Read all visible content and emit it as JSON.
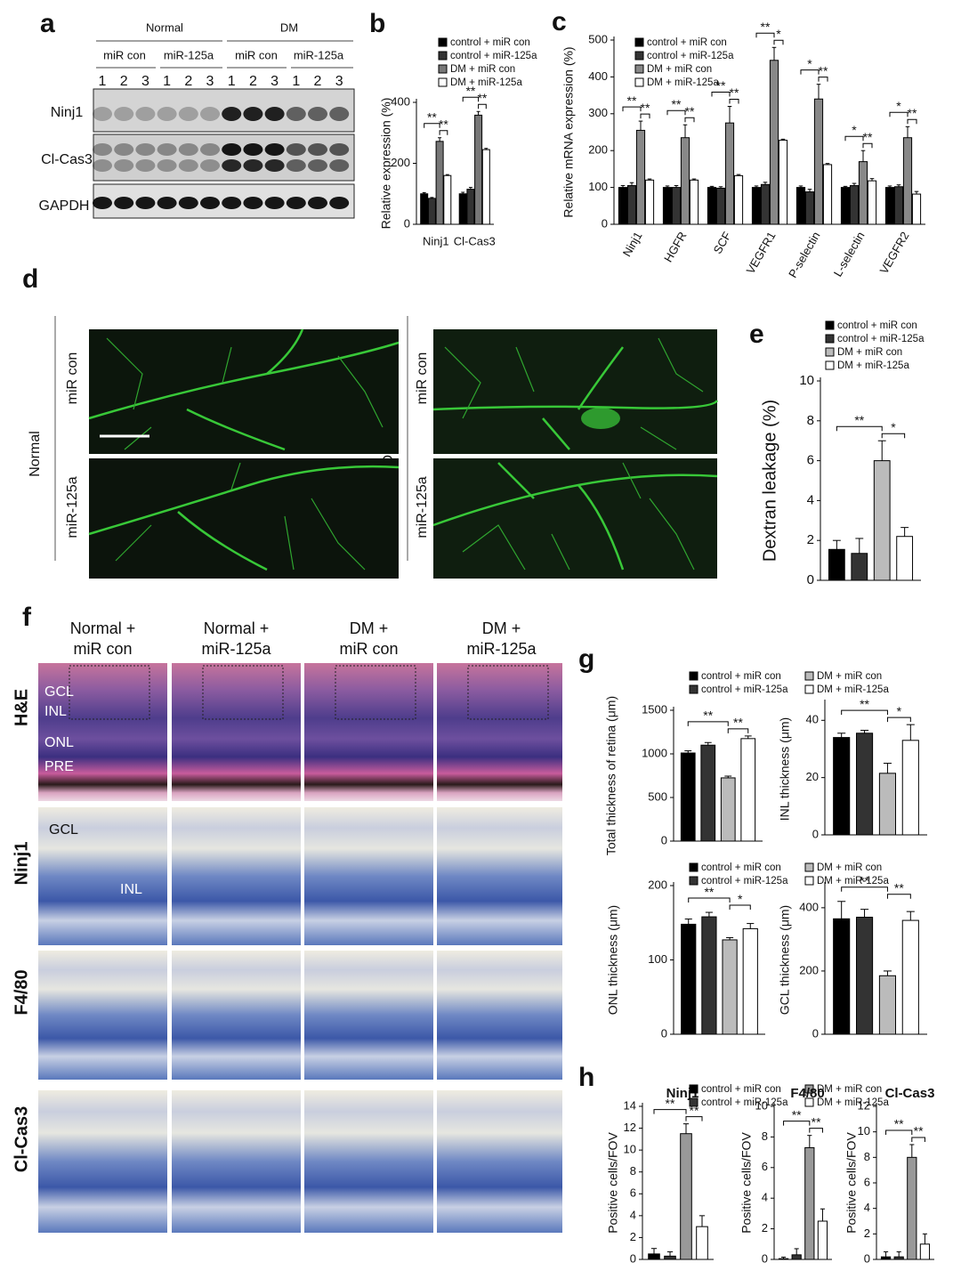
{
  "figure": {
    "panel_labels": [
      "a",
      "b",
      "c",
      "d",
      "e",
      "f",
      "g",
      "h"
    ],
    "blot": {
      "groups": [
        "Normal",
        "DM"
      ],
      "treatments": [
        "miR con",
        "miR-125a"
      ],
      "lanes": [
        "1",
        "2",
        "3"
      ],
      "rows": [
        "Ninj1",
        "Cl-Cas3",
        "GAPDH"
      ]
    },
    "angiography": {
      "groups": [
        "Normal",
        "DM"
      ],
      "treatments": [
        "miR con",
        "miR-125a"
      ]
    },
    "histology": {
      "columns": [
        [
          "Normal +",
          "miR con"
        ],
        [
          "Normal +",
          "miR-125a"
        ],
        [
          "DM +",
          "miR con"
        ],
        [
          "DM +",
          "miR-125a"
        ]
      ],
      "rows": [
        "H&E",
        "Ninj1",
        "F4/80",
        "Cl-Cas3"
      ],
      "layers": [
        "GCL",
        "INL",
        "ONL",
        "PRE"
      ]
    }
  },
  "chart_data": [
    {
      "type": "bar",
      "y_label": "Relative expression (%)",
      "categories": [
        "Ninj1",
        "Cl-Cas3"
      ],
      "ylim": [
        0,
        400
      ],
      "yticks": [
        0,
        200,
        400
      ],
      "legend": true,
      "series": [
        {
          "name": "control + miR con",
          "color": "#000000",
          "values": [
            100,
            100
          ],
          "errors": [
            4,
            5
          ]
        },
        {
          "name": "control + miR-125a",
          "color": "#333333",
          "values": [
            85,
            115
          ],
          "errors": [
            3,
            6
          ]
        },
        {
          "name": "DM + miR con",
          "color": "#777777",
          "values": [
            272,
            358
          ],
          "errors": [
            12,
            12
          ]
        },
        {
          "name": "DM + miR-125a",
          "color": "#ffffff",
          "values": [
            160,
            245
          ],
          "errors": [
            3,
            4
          ]
        }
      ],
      "annotations": [
        "**",
        "**",
        "**",
        "**"
      ]
    },
    {
      "type": "bar",
      "y_label": "Relative mRNA expression (%)",
      "categories": [
        "Ninj1",
        "HGFR",
        "SCF",
        "VEGFR1",
        "P-selectin",
        "L-selectin",
        "VEGFR2"
      ],
      "ylim": [
        0,
        500
      ],
      "yticks": [
        0,
        100,
        200,
        300,
        400,
        500
      ],
      "legend": true,
      "series": [
        {
          "name": "control + miR con",
          "color": "#000000",
          "values": [
            100,
            100,
            100,
            100,
            100,
            100,
            100
          ],
          "errors": [
            5,
            4,
            3,
            4,
            4,
            3,
            4
          ]
        },
        {
          "name": "control + miR-125a",
          "color": "#333333",
          "values": [
            105,
            100,
            98,
            108,
            88,
            105,
            102
          ],
          "errors": [
            8,
            5,
            4,
            6,
            7,
            6,
            5
          ]
        },
        {
          "name": "DM + miR con",
          "color": "#888888",
          "values": [
            255,
            235,
            275,
            445,
            340,
            170,
            235
          ],
          "errors": [
            25,
            35,
            45,
            35,
            40,
            30,
            30
          ]
        },
        {
          "name": "DM + miR-125a",
          "color": "#ffffff",
          "values": [
            120,
            120,
            132,
            228,
            162,
            118,
            82
          ],
          "errors": [
            3,
            3,
            3,
            3,
            3,
            6,
            7
          ]
        }
      ],
      "annotations": [
        "**",
        "**",
        "**",
        "**",
        "**",
        "**",
        "**",
        "*",
        "*",
        "**",
        "*",
        "**",
        "*",
        "**"
      ]
    },
    {
      "type": "bar",
      "y_label": "Dextran leakage (%)",
      "categories": [
        null
      ],
      "ylim": [
        0,
        10
      ],
      "yticks": [
        0,
        2,
        4,
        6,
        8,
        10
      ],
      "legend": true,
      "series": [
        {
          "name": "control + miR con",
          "color": "#000000",
          "values": [
            1.55
          ],
          "errors": [
            0.45
          ]
        },
        {
          "name": "control + miR-125a",
          "color": "#333333",
          "values": [
            1.35
          ],
          "errors": [
            0.75
          ]
        },
        {
          "name": "DM + miR con",
          "color": "#bbbbbb",
          "values": [
            6.0
          ],
          "errors": [
            1.0
          ]
        },
        {
          "name": "DM + miR-125a",
          "color": "#ffffff",
          "values": [
            2.2
          ],
          "errors": [
            0.45
          ]
        }
      ],
      "annotations": [
        "**",
        "*"
      ]
    },
    {
      "type": "bar",
      "y_label": "Total thickness of retina (μm)",
      "categories": [
        null
      ],
      "ylim": [
        0,
        1500
      ],
      "yticks": [
        0,
        500,
        1000,
        1500
      ],
      "legend": true,
      "series": [
        {
          "name": "control + miR con",
          "color": "#000000",
          "values": [
            1010
          ],
          "errors": [
            25
          ]
        },
        {
          "name": "control + miR-125a",
          "color": "#333333",
          "values": [
            1100
          ],
          "errors": [
            30
          ]
        },
        {
          "name": "DM + miR con",
          "color": "#bbbbbb",
          "values": [
            725
          ],
          "errors": [
            20
          ]
        },
        {
          "name": "DM + miR-125a",
          "color": "#ffffff",
          "values": [
            1175
          ],
          "errors": [
            30
          ]
        }
      ],
      "annotations": [
        "**",
        "**"
      ]
    },
    {
      "type": "bar",
      "y_label": "INL thickness (μm)",
      "categories": [
        null
      ],
      "ylim": [
        0,
        46
      ],
      "yticks": [
        0,
        20,
        40
      ],
      "series": [
        {
          "name": "control + miR con",
          "color": "#000000",
          "values": [
            34
          ],
          "errors": [
            1.5
          ]
        },
        {
          "name": "control + miR-125a",
          "color": "#333333",
          "values": [
            35.5
          ],
          "errors": [
            1.0
          ]
        },
        {
          "name": "DM + miR con",
          "color": "#bbbbbb",
          "values": [
            21.5
          ],
          "errors": [
            3.5
          ]
        },
        {
          "name": "DM + miR-125a",
          "color": "#ffffff",
          "values": [
            33
          ],
          "errors": [
            5.5
          ]
        }
      ],
      "annotations": [
        "**",
        "*"
      ]
    },
    {
      "type": "bar",
      "y_label": "ONL thickness (μm)",
      "categories": [
        null
      ],
      "ylim": [
        0,
        200
      ],
      "yticks": [
        0,
        100,
        200
      ],
      "legend": true,
      "series": [
        {
          "name": "control + miR con",
          "color": "#000000",
          "values": [
            148
          ],
          "errors": [
            7
          ]
        },
        {
          "name": "control + miR-125a",
          "color": "#333333",
          "values": [
            158
          ],
          "errors": [
            6
          ]
        },
        {
          "name": "DM + miR con",
          "color": "#bbbbbb",
          "values": [
            127
          ],
          "errors": [
            3
          ]
        },
        {
          "name": "DM + miR-125a",
          "color": "#ffffff",
          "values": [
            142
          ],
          "errors": [
            7
          ]
        }
      ],
      "annotations": [
        "**",
        "*"
      ]
    },
    {
      "type": "bar",
      "y_label": "GCL thickness (μm)",
      "categories": [
        null
      ],
      "ylim": [
        0,
        470
      ],
      "yticks": [
        0,
        200,
        400
      ],
      "series": [
        {
          "name": "control + miR con",
          "color": "#000000",
          "values": [
            365
          ],
          "errors": [
            55
          ]
        },
        {
          "name": "control + miR-125a",
          "color": "#333333",
          "values": [
            370
          ],
          "errors": [
            25
          ]
        },
        {
          "name": "DM + miR con",
          "color": "#bbbbbb",
          "values": [
            185
          ],
          "errors": [
            15
          ]
        },
        {
          "name": "DM + miR-125a",
          "color": "#ffffff",
          "values": [
            360
          ],
          "errors": [
            28
          ]
        }
      ],
      "annotations": [
        "**",
        "**"
      ]
    },
    {
      "type": "bar",
      "title": "Ninj1",
      "y_label": "Positive cells/FOV",
      "categories": [
        null
      ],
      "ylim": [
        0,
        14
      ],
      "yticks": [
        0,
        2,
        4,
        6,
        8,
        10,
        12,
        14
      ],
      "legend": true,
      "series": [
        {
          "name": "control + miR con",
          "color": "#000000",
          "values": [
            0.5
          ],
          "errors": [
            0.5
          ]
        },
        {
          "name": "control + miR-125a",
          "color": "#333333",
          "values": [
            0.3
          ],
          "errors": [
            0.4
          ]
        },
        {
          "name": "DM + miR con",
          "color": "#999999",
          "values": [
            11.5
          ],
          "errors": [
            0.9
          ]
        },
        {
          "name": "DM + miR-125a",
          "color": "#ffffff",
          "values": [
            3.0
          ],
          "errors": [
            1.0
          ]
        }
      ],
      "annotations": [
        "**",
        "**"
      ]
    },
    {
      "type": "bar",
      "title": "F4/80",
      "y_label": "Positive cells/FOV",
      "categories": [
        null
      ],
      "ylim": [
        0,
        10
      ],
      "yticks": [
        0,
        2,
        4,
        6,
        8,
        10
      ],
      "series": [
        {
          "name": "control + miR con",
          "color": "#000000",
          "values": [
            0.05
          ],
          "errors": [
            0.1
          ]
        },
        {
          "name": "control + miR-125a",
          "color": "#333333",
          "values": [
            0.3
          ],
          "errors": [
            0.4
          ]
        },
        {
          "name": "DM + miR con",
          "color": "#999999",
          "values": [
            7.3
          ],
          "errors": [
            0.8
          ]
        },
        {
          "name": "DM + miR-125a",
          "color": "#ffffff",
          "values": [
            2.5
          ],
          "errors": [
            0.8
          ]
        }
      ],
      "annotations": [
        "**",
        "**"
      ]
    },
    {
      "type": "bar",
      "title": "Cl-Cas3",
      "y_label": "Positive cells/FOV",
      "categories": [
        null
      ],
      "ylim": [
        0,
        12
      ],
      "yticks": [
        0,
        2,
        4,
        6,
        8,
        10,
        12
      ],
      "series": [
        {
          "name": "control + miR con",
          "color": "#000000",
          "values": [
            0.2
          ],
          "errors": [
            0.4
          ]
        },
        {
          "name": "control + miR-125a",
          "color": "#333333",
          "values": [
            0.2
          ],
          "errors": [
            0.4
          ]
        },
        {
          "name": "DM + miR con",
          "color": "#999999",
          "values": [
            8.0
          ],
          "errors": [
            1.0
          ]
        },
        {
          "name": "DM + miR-125a",
          "color": "#ffffff",
          "values": [
            1.2
          ],
          "errors": [
            0.8
          ]
        }
      ],
      "annotations": [
        "**",
        "**"
      ]
    }
  ]
}
